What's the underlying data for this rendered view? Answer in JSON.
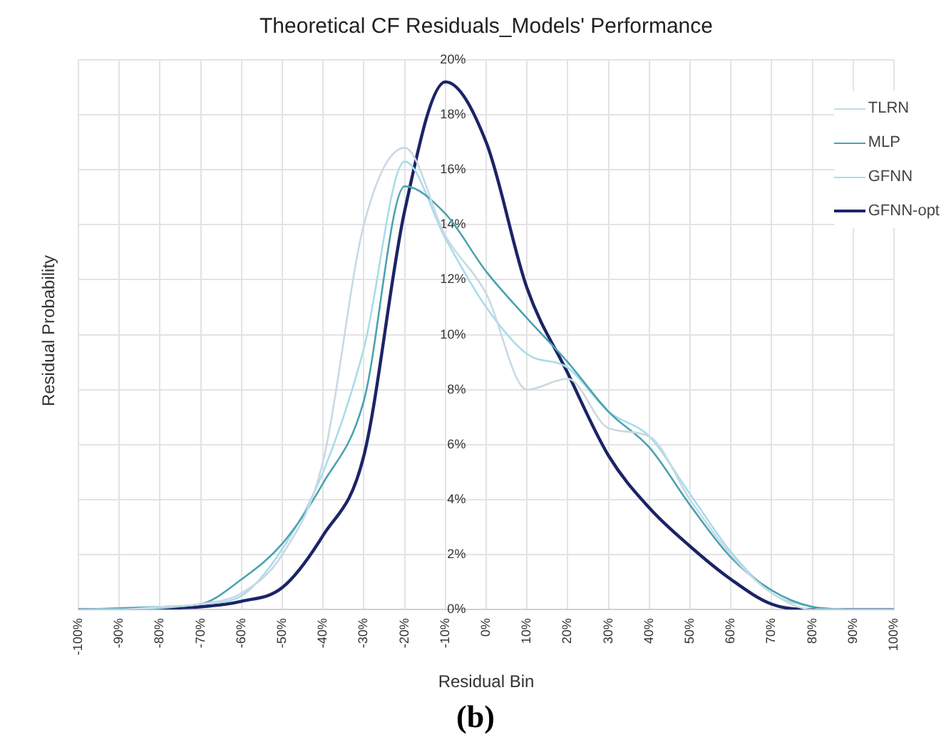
{
  "chart_data": {
    "type": "line",
    "title": "Theoretical CF Residuals_Models' Performance",
    "xlabel": "Residual Bin",
    "ylabel": "Residual Probability",
    "categories": [
      "-100%",
      "-90%",
      "-80%",
      "-70%",
      "-60%",
      "-50%",
      "-40%",
      "-30%",
      "-20%",
      "-10%",
      "0%",
      "10%",
      "20%",
      "30%",
      "40%",
      "50%",
      "60%",
      "70%",
      "80%",
      "90%",
      "100%"
    ],
    "series": [
      {
        "name": "TLRN",
        "color": "#c9d9e3",
        "values": [
          0,
          0,
          0.1,
          0.2,
          0.6,
          2.0,
          5.4,
          14.0,
          16.8,
          13.6,
          11.5,
          8.0,
          8.4,
          6.6,
          6.3,
          4.0,
          2.0,
          0.6,
          0,
          0,
          0
        ]
      },
      {
        "name": "MLP",
        "color": "#4aa3b0",
        "values": [
          0,
          0.05,
          0.1,
          0.2,
          1.1,
          2.4,
          4.6,
          7.6,
          15.4,
          14.4,
          12.3,
          10.6,
          9.0,
          7.2,
          5.9,
          3.8,
          1.9,
          0.7,
          0.1,
          0,
          0
        ]
      },
      {
        "name": "GFNN",
        "color": "#a9dcea",
        "values": [
          0,
          0,
          0.05,
          0.2,
          0.5,
          2.2,
          5.0,
          9.5,
          16.3,
          13.5,
          11.0,
          9.3,
          8.8,
          7.2,
          6.3,
          4.2,
          2.1,
          0.6,
          0.1,
          0,
          0
        ]
      },
      {
        "name": "GFNN-opt",
        "color": "#1c2466",
        "values": [
          0,
          0,
          0.05,
          0.1,
          0.3,
          0.8,
          2.7,
          5.6,
          14.5,
          19.2,
          17.0,
          11.7,
          8.6,
          5.6,
          3.7,
          2.3,
          1.1,
          0.2,
          0,
          0,
          0
        ]
      }
    ],
    "ylim": [
      0,
      20
    ],
    "yticks": [
      {
        "value": 0,
        "label": "0%"
      },
      {
        "value": 2,
        "label": "2%"
      },
      {
        "value": 4,
        "label": "4%"
      },
      {
        "value": 6,
        "label": "6%"
      },
      {
        "value": 8,
        "label": "8%"
      },
      {
        "value": 10,
        "label": "10%"
      },
      {
        "value": 12,
        "label": "12%"
      },
      {
        "value": 14,
        "label": "14%"
      },
      {
        "value": 16,
        "label": "16%"
      },
      {
        "value": 18,
        "label": "18%"
      },
      {
        "value": 20,
        "label": "20%"
      }
    ],
    "grid": true,
    "legend": "top right",
    "marker": "none",
    "line_style": "solid",
    "annotations": [
      "(b)"
    ]
  }
}
